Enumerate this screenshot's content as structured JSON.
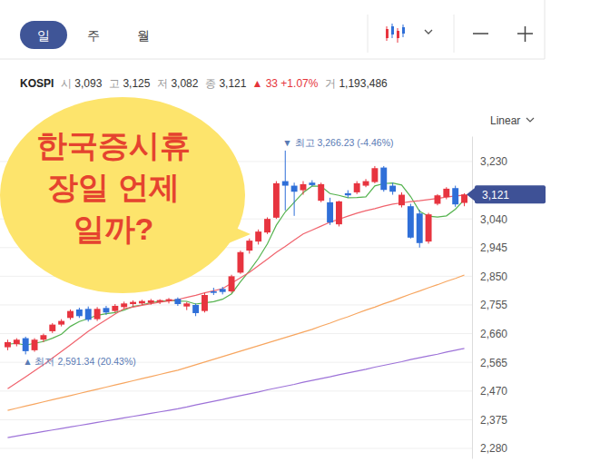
{
  "header": {
    "tabs": [
      "일",
      "주",
      "월"
    ]
  },
  "quote": {
    "symbol": "KOSPI",
    "fields": [
      {
        "label": "시",
        "value": "3,093"
      },
      {
        "label": "고",
        "value": "3,125"
      },
      {
        "label": "저",
        "value": "3,082"
      },
      {
        "label": "종",
        "value": "3,121"
      }
    ],
    "change": "▲ 33 +1.07%",
    "volume_label": "거",
    "volume": "1,193,486"
  },
  "bubble": {
    "lines": [
      "한국증시휴",
      "장일 언제",
      "일까?"
    ]
  },
  "chart_data": {
    "type": "candlestick",
    "scale_menu": "Linear",
    "grid": true,
    "categories": [
      null,
      null,
      null,
      null,
      null,
      null,
      null,
      null,
      null,
      null,
      null,
      null,
      null,
      null,
      null,
      null,
      null,
      null,
      null,
      null,
      null,
      null,
      null,
      null,
      null,
      null,
      null,
      null,
      null,
      null,
      null,
      null,
      null,
      null,
      null,
      null,
      null,
      null,
      null,
      null,
      null,
      null,
      null,
      null,
      null,
      null,
      null,
      null,
      null,
      null,
      null,
      null
    ],
    "ylim": [
      2247,
      3314
    ],
    "yticks": [
      {
        "value": 2280,
        "label": "2,280"
      },
      {
        "value": 2375,
        "label": "2,375"
      },
      {
        "value": 2470,
        "label": "2,470"
      },
      {
        "value": 2565,
        "label": "2,565"
      },
      {
        "value": 2660,
        "label": "2,660"
      },
      {
        "value": 2755,
        "label": "2,755"
      },
      {
        "value": 2850,
        "label": "2,850"
      },
      {
        "value": 2945,
        "label": "2,945"
      },
      {
        "value": 3040,
        "label": "3,040"
      },
      {
        "value": 3230,
        "label": "3,230"
      }
    ],
    "series": [
      {
        "type": "line",
        "color": "#55b34f",
        "values": [
          2625,
          2628,
          2622,
          2628,
          2634,
          2645,
          2658,
          2684,
          2700,
          2710,
          2721,
          2726,
          2730,
          2738,
          2750,
          2755,
          2763,
          2767,
          2770,
          2768,
          2767,
          2758,
          2762,
          2766,
          2774,
          2792,
          2832,
          2868,
          2909,
          2957,
          3019,
          3063,
          3095,
          3127,
          3149,
          3148,
          3124,
          3118,
          3110,
          3111,
          3113,
          3149,
          3157,
          3159,
          3152,
          3114,
          3065,
          3049,
          3046,
          3050,
          3072,
          3104
        ]
      },
      {
        "type": "line",
        "color": "#f0636d",
        "values": [
          2478,
          2497,
          2517,
          2537,
          2557,
          2579,
          2601,
          2623,
          2645,
          2668,
          2687,
          2706,
          2725,
          2743,
          2748,
          2754,
          2759,
          2764,
          2768,
          2773,
          2780,
          2787,
          2795,
          2802,
          2809,
          2827,
          2845,
          2863,
          2885,
          2907,
          2929,
          2949,
          2970,
          2990,
          3003,
          3016,
          3029,
          3039,
          3049,
          3059,
          3067,
          3074,
          3082,
          3089,
          3093,
          3097,
          3100,
          3104,
          3108,
          3112,
          3116,
          3119
        ]
      },
      {
        "type": "line",
        "color": "#f7a660",
        "values": [
          2406,
          2413,
          2420,
          2427,
          2434,
          2441,
          2448,
          2455,
          2462,
          2469,
          2476,
          2483,
          2490,
          2497,
          2504,
          2511,
          2518,
          2525,
          2532,
          2539,
          2548,
          2557,
          2566,
          2575,
          2584,
          2593,
          2602,
          2611,
          2620,
          2629,
          2638,
          2647,
          2656,
          2665,
          2674,
          2685,
          2695,
          2706,
          2716,
          2727,
          2738,
          2748,
          2759,
          2769,
          2780,
          2791,
          2801,
          2812,
          2822,
          2833,
          2843,
          2854
        ]
      },
      {
        "type": "line",
        "color": "#9d72d8",
        "values": [
          2316,
          2321,
          2326,
          2331,
          2336,
          2341,
          2346,
          2351,
          2356,
          2361,
          2366,
          2371,
          2376,
          2381,
          2386,
          2391,
          2396,
          2401,
          2406,
          2411,
          2417,
          2424,
          2430,
          2436,
          2442,
          2449,
          2455,
          2461,
          2467,
          2474,
          2480,
          2486,
          2492,
          2499,
          2505,
          2511,
          2517,
          2524,
          2530,
          2536,
          2542,
          2549,
          2555,
          2561,
          2567,
          2574,
          2580,
          2586,
          2592,
          2599,
          2605,
          2611
        ]
      },
      {
        "type": "candlestick",
        "open": [
          2615,
          2625,
          2645,
          2605,
          2640,
          2668,
          2690,
          2712,
          2740,
          2742,
          2708,
          2745,
          2735,
          2748,
          2758,
          2760,
          2762,
          2765,
          2768,
          2775,
          2750,
          2755,
          2735,
          2800,
          2808,
          2800,
          2862,
          2935,
          2965,
          2995,
          3044,
          3165,
          3150,
          3135,
          3160,
          3100,
          3095,
          3022,
          3125,
          3128,
          3150,
          3162,
          3210,
          3150,
          3085,
          3082,
          3058,
          2965,
          3090,
          3112,
          3142,
          3093
        ],
        "high": [
          2640,
          2645,
          2650,
          2645,
          2660,
          2695,
          2708,
          2740,
          2746,
          2750,
          2748,
          2752,
          2758,
          2766,
          2770,
          2772,
          2775,
          2774,
          2778,
          2780,
          2765,
          2760,
          2795,
          2812,
          2815,
          2855,
          2935,
          2975,
          3005,
          3045,
          3165,
          3266.23,
          3160,
          3165,
          3168,
          3160,
          3110,
          3100,
          3135,
          3165,
          3172,
          3215,
          3215,
          3160,
          3128,
          3090,
          3070,
          3060,
          3122,
          3145,
          3150,
          3125
        ],
        "low": [
          2605,
          2618,
          2591.34,
          2600,
          2632,
          2662,
          2684,
          2706,
          2712,
          2700,
          2702,
          2722,
          2730,
          2742,
          2750,
          2755,
          2756,
          2758,
          2760,
          2752,
          2738,
          2718,
          2730,
          2788,
          2790,
          2795,
          2858,
          2925,
          2955,
          2990,
          3040,
          3068,
          3050,
          3120,
          3148,
          3095,
          3020,
          3015,
          3110,
          3122,
          3145,
          3158,
          3130,
          3120,
          3078,
          2975,
          2945,
          2958,
          3085,
          3105,
          3080,
          3082
        ],
        "close": [
          2632,
          2640,
          2602,
          2640,
          2655,
          2690,
          2702,
          2735,
          2718,
          2706,
          2742,
          2730,
          2752,
          2760,
          2765,
          2768,
          2770,
          2771,
          2774,
          2758,
          2760,
          2728,
          2788,
          2795,
          2798,
          2850,
          2930,
          2968,
          2998,
          3040,
          3158,
          3150,
          3130,
          3155,
          3152,
          3155,
          3028,
          3098,
          3118,
          3158,
          3165,
          3208,
          3136,
          3130,
          3120,
          2978,
          2960,
          3055,
          3118,
          3140,
          3088,
          3121
        ]
      }
    ],
    "annotations": [
      {
        "text": "▼ 최고 3,266.23 (-4.46%)",
        "x": 31,
        "y": 3266.23
      },
      {
        "text": "▲ 최저 2,591.34 (20.43%)",
        "x": 2,
        "y": 2591.34
      }
    ],
    "last_price": {
      "value": 3121,
      "label": "3,121"
    }
  }
}
